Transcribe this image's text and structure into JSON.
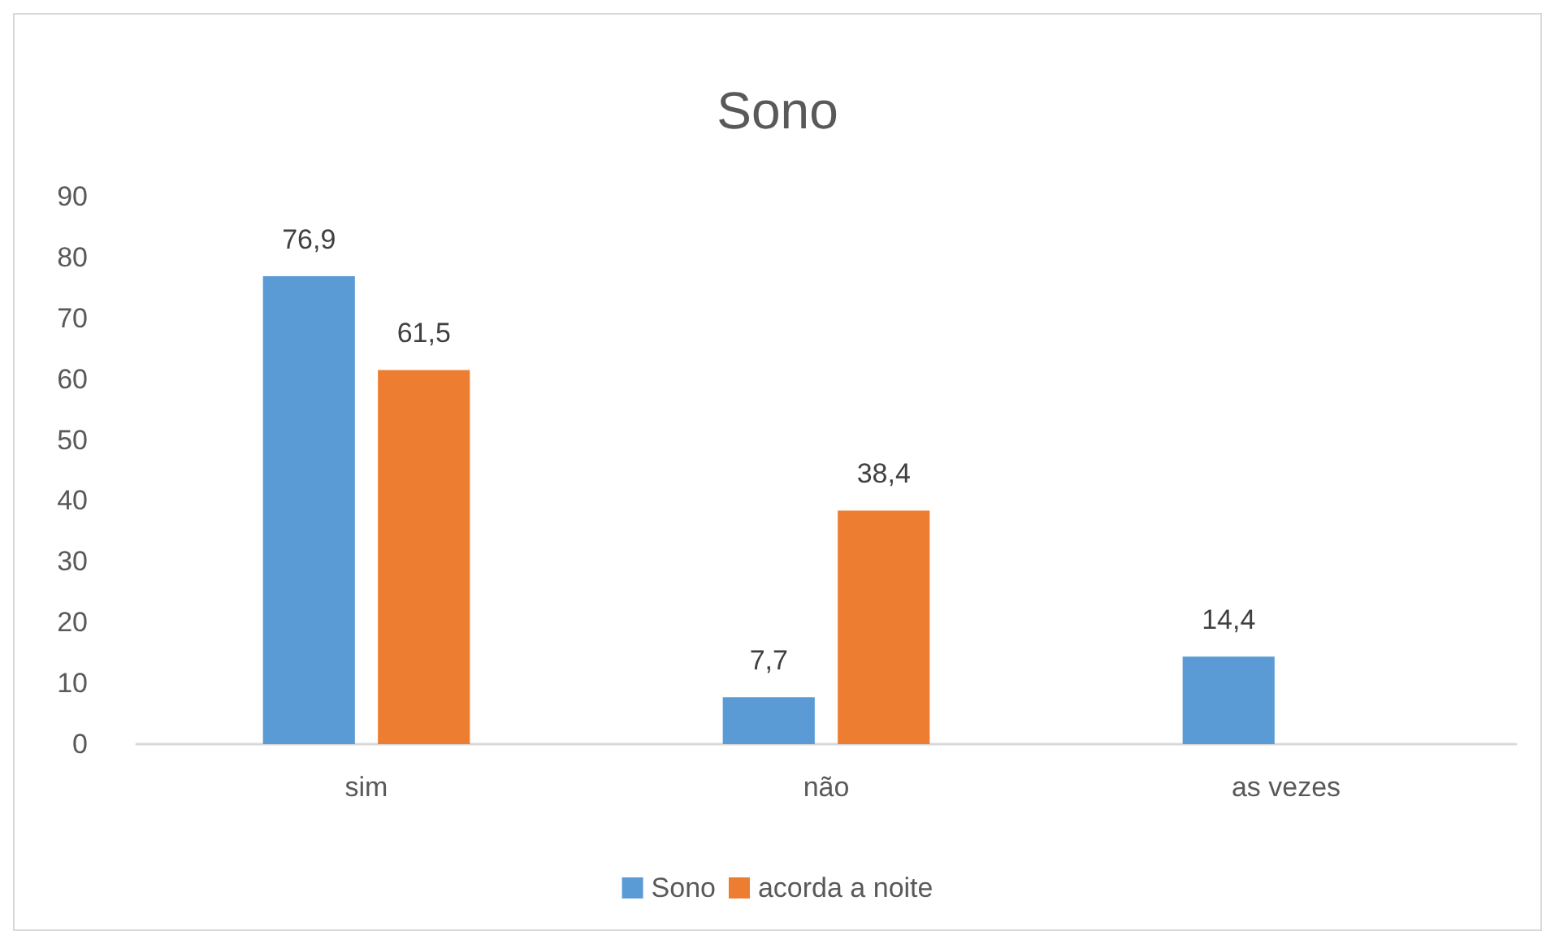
{
  "chart_data": {
    "type": "bar",
    "title": "Sono",
    "categories": [
      "sim",
      "não",
      "as vezes"
    ],
    "series": [
      {
        "name": "Sono",
        "color": "#5b9bd5",
        "values": [
          76.9,
          7.7,
          14.4
        ],
        "value_labels": [
          "76,9",
          "7,7",
          "14,4"
        ]
      },
      {
        "name": "acorda a noite",
        "color": "#ed7d31",
        "values": [
          61.5,
          38.4,
          null
        ],
        "value_labels": [
          "61,5",
          "38,4",
          null
        ]
      }
    ],
    "ylim": [
      0,
      90
    ],
    "yticks": [
      0,
      10,
      20,
      30,
      40,
      50,
      60,
      70,
      80,
      90
    ],
    "grid": false,
    "legend": "bottom"
  }
}
